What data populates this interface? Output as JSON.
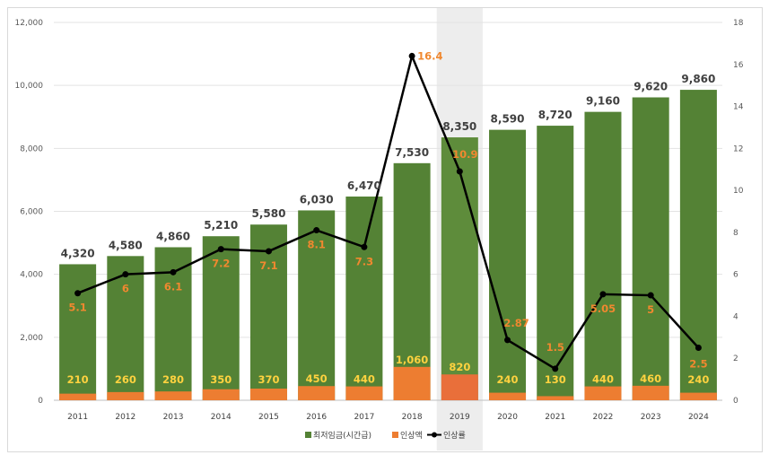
{
  "chart_data": {
    "type": "bar",
    "categories": [
      "2011",
      "2012",
      "2013",
      "2014",
      "2015",
      "2016",
      "2017",
      "2018",
      "2019",
      "2020",
      "2021",
      "2022",
      "2023",
      "2024"
    ],
    "series": [
      {
        "name": "최저임금(시간급)",
        "type": "bar",
        "axis": "left",
        "color": "#548235",
        "values": [
          4320,
          4580,
          4860,
          5210,
          5580,
          6030,
          6470,
          7530,
          8350,
          8590,
          8720,
          9160,
          9620,
          9860
        ]
      },
      {
        "name": "인상액",
        "type": "bar",
        "axis": "left",
        "color": "#ed7d31",
        "values": [
          210,
          260,
          280,
          350,
          370,
          450,
          440,
          1060,
          820,
          240,
          130,
          440,
          460,
          240
        ]
      },
      {
        "name": "인상률",
        "type": "line",
        "axis": "right",
        "color": "#000000",
        "values": [
          5.1,
          6,
          6.1,
          7.2,
          7.1,
          8.1,
          7.3,
          16.4,
          10.9,
          2.87,
          1.5,
          5.05,
          5,
          2.5
        ]
      }
    ],
    "left_axis": {
      "ylim": [
        0,
        12000
      ],
      "ticks": [
        "0",
        "2,000",
        "4,000",
        "6,000",
        "8,000",
        "10,000",
        "12,000"
      ]
    },
    "right_axis": {
      "ylim": [
        0,
        18
      ],
      "ticks": [
        "0",
        "2",
        "4",
        "6",
        "8",
        "10",
        "12",
        "14",
        "16",
        "18"
      ]
    },
    "highlight_category": "2019",
    "total_labels": [
      "4,320",
      "4,580",
      "4,860",
      "5,210",
      "5,580",
      "6,030",
      "6,470",
      "7,530",
      "8,350",
      "8,590",
      "8,720",
      "9,160",
      "9,620",
      "9,860"
    ],
    "increase_labels": [
      "210",
      "260",
      "280",
      "350",
      "370",
      "450",
      "440",
      "1,060",
      "820",
      "240",
      "130",
      "440",
      "460",
      "240"
    ],
    "rate_labels": [
      "5.1",
      "6",
      "6.1",
      "7.2",
      "7.1",
      "8.1",
      "7.3",
      "16.4",
      "10.9",
      "2.87",
      "1.5",
      "5.05",
      "5",
      "2.5"
    ],
    "legend": {
      "position": "bottom",
      "items": [
        "최저임금(시간급)",
        "인상액",
        "인상률"
      ]
    },
    "grid": true
  }
}
